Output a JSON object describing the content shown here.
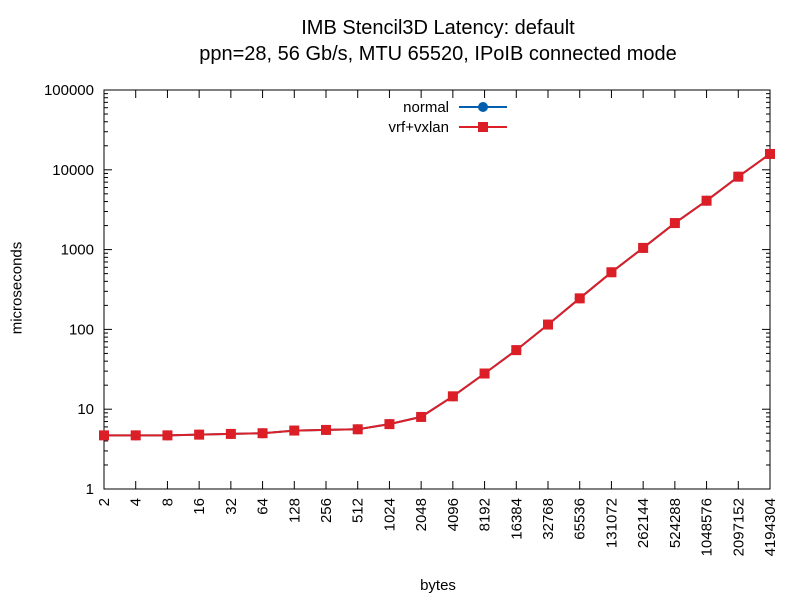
{
  "chart_data": {
    "type": "line",
    "title": "IMB Stencil3D Latency: default",
    "subtitle": "ppn=28, 56 Gb/s, MTU 65520, IPoIB connected mode",
    "xlabel": "bytes",
    "ylabel": "microseconds",
    "x_scale": "log2",
    "y_scale": "log10",
    "xlim": [
      2,
      4194304
    ],
    "ylim": [
      1,
      100000
    ],
    "grid": false,
    "legend_position": "top-center",
    "x_ticks": [
      "2",
      "4",
      "8",
      "16",
      "32",
      "64",
      "128",
      "256",
      "512",
      "1024",
      "2048",
      "4096",
      "8192",
      "16384",
      "32768",
      "65536",
      "131072",
      "262144",
      "524288",
      "1048576",
      "2097152",
      "4194304"
    ],
    "y_ticks": [
      "1",
      "10",
      "100",
      "1000",
      "10000",
      "100000"
    ],
    "x": [
      2,
      4,
      8,
      16,
      32,
      64,
      128,
      256,
      512,
      1024,
      2048,
      4096,
      8192,
      16384,
      32768,
      65536,
      131072,
      262144,
      524288,
      1048576,
      2097152,
      4194304
    ],
    "series": [
      {
        "name": "normal",
        "color": "#0060ad",
        "marker": "circle",
        "values": [
          4.7,
          4.7,
          4.7,
          4.8,
          4.9,
          5.0,
          5.4,
          5.5,
          5.6,
          6.5,
          8.0,
          14.5,
          28,
          55,
          115,
          245,
          520,
          1050,
          2150,
          4100,
          8200,
          15800
        ]
      },
      {
        "name": "vrf+vxlan",
        "color": "#dc1f26",
        "marker": "square",
        "values": [
          4.7,
          4.7,
          4.7,
          4.8,
          4.9,
          5.0,
          5.4,
          5.5,
          5.6,
          6.5,
          8.0,
          14.5,
          28,
          55,
          115,
          245,
          520,
          1050,
          2150,
          4100,
          8200,
          15800
        ]
      }
    ]
  }
}
